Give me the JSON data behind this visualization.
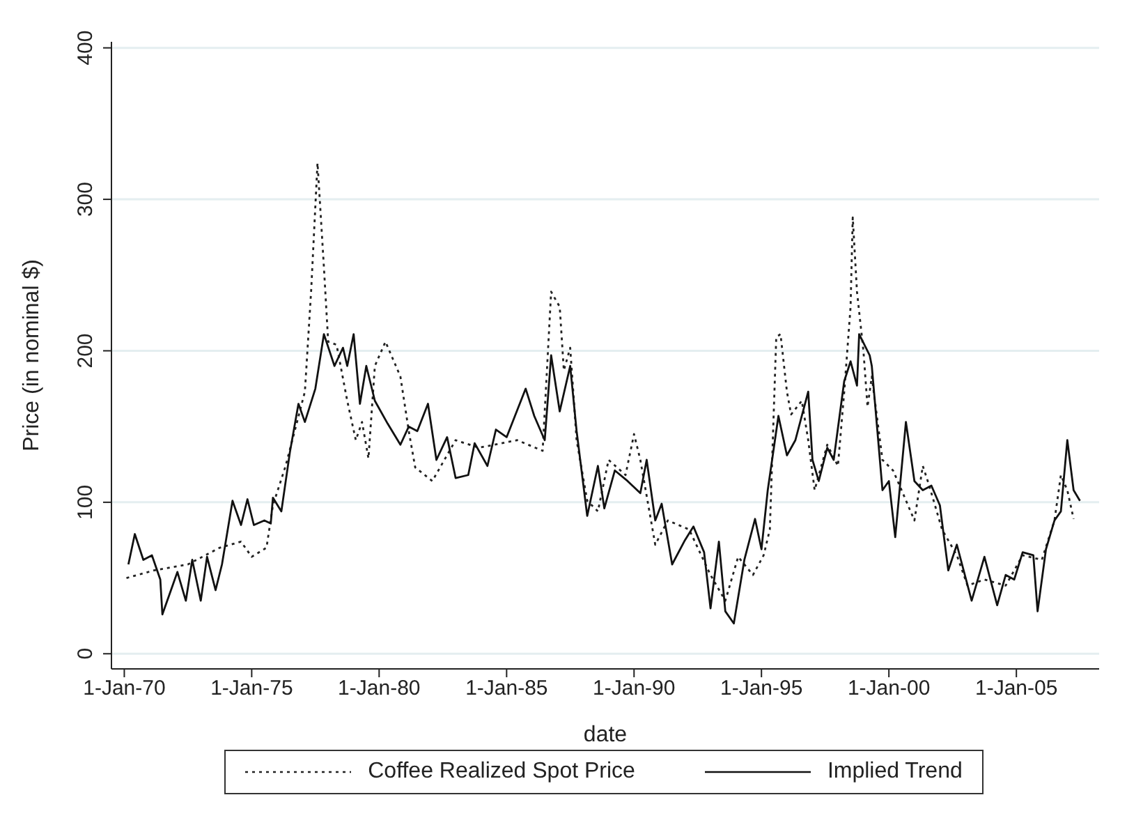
{
  "chart_data": {
    "type": "line",
    "xlabel": "date",
    "ylabel": "Price (in nominal $)",
    "xlim": [
      "1969-07",
      "2008-04"
    ],
    "xticks": [
      {
        "value": "1970-01-01",
        "label": "1-Jan-70"
      },
      {
        "value": "1975-01-01",
        "label": "1-Jan-75"
      },
      {
        "value": "1980-01-01",
        "label": "1-Jan-80"
      },
      {
        "value": "1985-01-01",
        "label": "1-Jan-85"
      },
      {
        "value": "1990-01-01",
        "label": "1-Jan-90"
      },
      {
        "value": "1995-01-01",
        "label": "1-Jan-95"
      },
      {
        "value": "2000-01-01",
        "label": "1-Jan-00"
      },
      {
        "value": "2005-01-01",
        "label": "1-Jan-05"
      }
    ],
    "ylim": [
      -10,
      404
    ],
    "yticks": [
      0,
      100,
      200,
      300,
      400
    ],
    "grid": "y",
    "legend": "bottom",
    "marker": "none",
    "series": [
      {
        "name": "Coffee Realized Spot Price",
        "color": "#222222",
        "line_style": "dotted",
        "x": [
          "1970-02",
          "1971-03",
          "1972-07",
          "1973-10",
          "1974-08",
          "1975-01",
          "1975-08",
          "1975-11",
          "1976-05",
          "1977-02",
          "1977-05",
          "1977-08",
          "1977-11",
          "1978-01",
          "1978-05",
          "1978-10",
          "1979-02",
          "1979-05",
          "1979-08",
          "1979-11",
          "1980-04",
          "1980-11",
          "1981-03",
          "1981-06",
          "1982-02",
          "1983-01",
          "1983-12",
          "1985-06",
          "1986-06",
          "1986-10",
          "1987-02",
          "1987-04",
          "1987-07",
          "1987-10",
          "1988-03",
          "1988-08",
          "1989-01",
          "1989-09",
          "1990-01",
          "1990-04",
          "1990-11",
          "1991-05",
          "1992-03",
          "1993-01",
          "1993-08",
          "1994-02",
          "1994-09",
          "1995-02",
          "1995-05",
          "1995-08",
          "1995-10",
          "1996-01",
          "1996-03",
          "1996-08",
          "1996-11",
          "1997-02",
          "1997-08",
          "1998-01",
          "1998-04",
          "1998-07",
          "1998-08",
          "1998-10",
          "1999-01",
          "1999-03",
          "1999-05",
          "1999-10",
          "2000-03",
          "2000-07",
          "2001-01",
          "2001-05",
          "2001-08",
          "2002-02",
          "2002-09",
          "2003-02",
          "2003-10",
          "2004-08",
          "2005-04",
          "2006-01",
          "2006-07",
          "2006-10",
          "2007-01",
          "2007-04"
        ],
        "values": [
          50,
          55,
          59,
          70,
          74,
          64,
          70,
          98,
          124,
          173,
          239,
          324,
          255,
          206,
          204,
          167,
          141,
          153,
          129,
          190,
          206,
          183,
          147,
          123,
          114,
          141,
          136,
          141,
          134,
          239,
          229,
          187,
          202,
          141,
          101,
          94,
          128,
          118,
          145,
          128,
          72,
          88,
          82,
          52,
          35,
          64,
          52,
          65,
          82,
          209,
          211,
          173,
          158,
          167,
          141,
          108,
          138,
          124,
          173,
          229,
          288,
          239,
          200,
          163,
          183,
          128,
          121,
          108,
          88,
          124,
          111,
          82,
          65,
          45,
          49,
          45,
          65,
          62,
          88,
          118,
          108,
          89
        ]
      },
      {
        "name": "Implied Trend",
        "color": "#111111",
        "line_style": "solid",
        "x": [
          "1970-03",
          "1970-06",
          "1970-10",
          "1971-02",
          "1971-06",
          "1971-07",
          "1971-11",
          "1972-02",
          "1972-06",
          "1972-09",
          "1973-01",
          "1973-04",
          "1973-08",
          "1973-11",
          "1974-04",
          "1974-08",
          "1974-11",
          "1975-02",
          "1975-07",
          "1975-10",
          "1975-11",
          "1976-03",
          "1976-07",
          "1976-11",
          "1977-02",
          "1977-07",
          "1977-11",
          "1978-04",
          "1978-08",
          "1978-10",
          "1979-01",
          "1979-04",
          "1979-07",
          "1979-11",
          "1980-05",
          "1980-11",
          "1981-03",
          "1981-07",
          "1981-12",
          "1982-04",
          "1982-09",
          "1983-01",
          "1983-07",
          "1983-10",
          "1984-04",
          "1984-08",
          "1985-01",
          "1985-10",
          "1986-02",
          "1986-07",
          "1986-10",
          "1987-02",
          "1987-07",
          "1987-10",
          "1988-03",
          "1988-08",
          "1988-11",
          "1989-04",
          "1989-10",
          "1990-04",
          "1990-07",
          "1990-11",
          "1991-02",
          "1991-07",
          "1992-01",
          "1992-05",
          "1992-10",
          "1993-01",
          "1993-05",
          "1993-08",
          "1993-12",
          "1994-05",
          "1994-10",
          "1995-01",
          "1995-04",
          "1995-09",
          "1996-01",
          "1996-05",
          "1996-08",
          "1996-11",
          "1997-01",
          "1997-04",
          "1997-08",
          "1997-11",
          "1998-04",
          "1998-07",
          "1998-10",
          "1998-11",
          "1999-04",
          "1999-05",
          "1999-10",
          "2000-01",
          "2000-04",
          "2000-09",
          "2001-01",
          "2001-05",
          "2001-09",
          "2002-01",
          "2002-05",
          "2002-09",
          "2003-04",
          "2003-10",
          "2004-04",
          "2004-08",
          "2004-12",
          "2005-04",
          "2005-09",
          "2005-11",
          "2006-03",
          "2006-07",
          "2006-10",
          "2007-01",
          "2007-04",
          "2007-07"
        ],
        "values": [
          59,
          79,
          62,
          65,
          49,
          26,
          42,
          54,
          35,
          62,
          35,
          64,
          42,
          59,
          101,
          85,
          102,
          85,
          88,
          86,
          103,
          94,
          133,
          165,
          153,
          175,
          211,
          190,
          202,
          190,
          211,
          165,
          190,
          167,
          152,
          138,
          150,
          147,
          165,
          128,
          143,
          116,
          118,
          139,
          124,
          148,
          143,
          175,
          157,
          141,
          197,
          160,
          190,
          147,
          91,
          124,
          96,
          121,
          114,
          106,
          128,
          88,
          99,
          59,
          75,
          84,
          67,
          30,
          74,
          28,
          20,
          62,
          89,
          69,
          108,
          157,
          131,
          141,
          157,
          173,
          128,
          114,
          136,
          128,
          180,
          193,
          177,
          211,
          197,
          190,
          108,
          114,
          77,
          153,
          114,
          108,
          111,
          98,
          55,
          72,
          35,
          64,
          32,
          52,
          49,
          67,
          65,
          28,
          69,
          88,
          94,
          141,
          108,
          101
        ]
      }
    ]
  }
}
